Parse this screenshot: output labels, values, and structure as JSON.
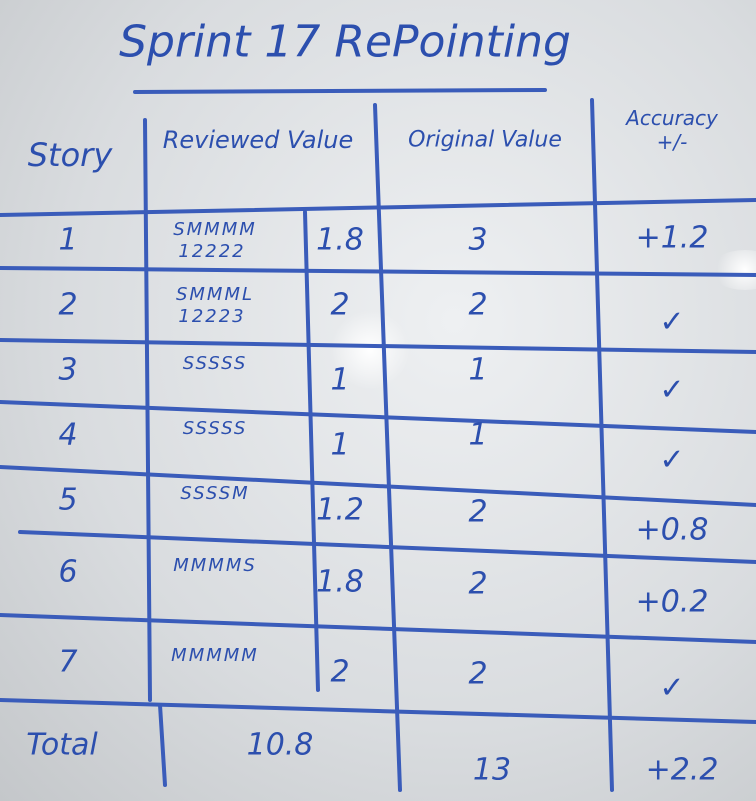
{
  "title": "Sprint 17 RePointing",
  "headers": {
    "story": "Story",
    "reviewed": "Reviewed Value",
    "original": "Original Value",
    "accuracy": "Accuracy +/-"
  },
  "rows": [
    {
      "story": "1",
      "sizes": "SMMMM",
      "points": "12222",
      "reviewed": "1.8",
      "original": "3",
      "accuracy": "+1.2"
    },
    {
      "story": "2",
      "sizes": "SMMML",
      "points": "12223",
      "reviewed": "2",
      "original": "2",
      "accuracy": "✓"
    },
    {
      "story": "3",
      "sizes": "SSSSS",
      "points": "",
      "reviewed": "1",
      "original": "1",
      "accuracy": "✓"
    },
    {
      "story": "4",
      "sizes": "SSSSS",
      "points": "",
      "reviewed": "1",
      "original": "1",
      "accuracy": "✓"
    },
    {
      "story": "5",
      "sizes": "SSSSM",
      "points": "",
      "reviewed": "1.2",
      "original": "2",
      "accuracy": "+0.8"
    },
    {
      "story": "6",
      "sizes": "MMMMS",
      "points": "",
      "reviewed": "1.8",
      "original": "2",
      "accuracy": "+0.2"
    },
    {
      "story": "7",
      "sizes": "MMMMM",
      "points": "",
      "reviewed": "2",
      "original": "2",
      "accuracy": "✓"
    }
  ],
  "total": {
    "label": "Total",
    "reviewed": "10.8",
    "original": "13",
    "accuracy": "+2.2"
  },
  "colors": {
    "marker": "#2c4fae",
    "board": "#e4e6e8"
  }
}
